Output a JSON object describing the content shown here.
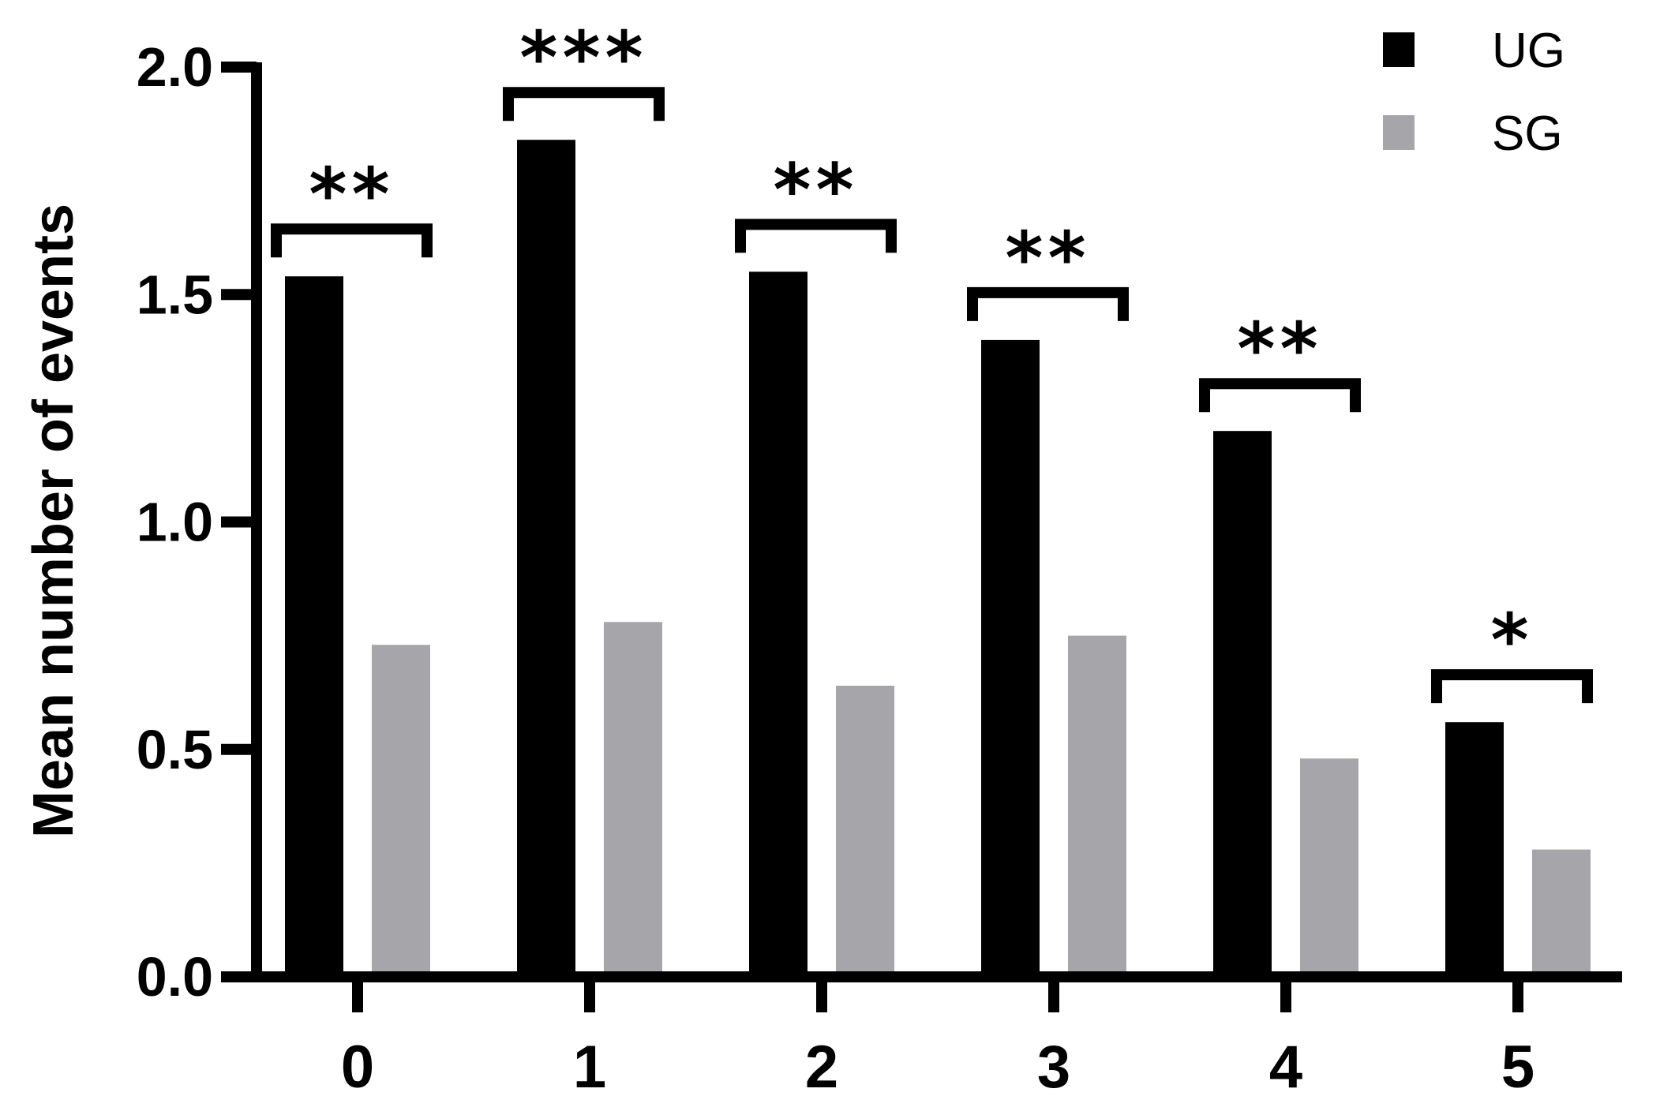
{
  "chart_data": {
    "type": "bar",
    "title": "",
    "xlabel": "",
    "ylabel": "Mean number of events",
    "categories": [
      "0",
      "1",
      "2",
      "3",
      "4",
      "5"
    ],
    "series": [
      {
        "name": "UG",
        "color": "#000000",
        "values": [
          1.54,
          1.84,
          1.55,
          1.4,
          1.2,
          0.56
        ]
      },
      {
        "name": "SG",
        "color": "#a6a6aa",
        "values": [
          0.73,
          0.78,
          0.64,
          0.75,
          0.48,
          0.28
        ]
      }
    ],
    "significance": [
      "**",
      "***",
      "**",
      "**",
      "**",
      "*"
    ],
    "ylim": [
      0,
      2.0
    ],
    "yticks": [
      "0.0",
      "0.5",
      "1.0",
      "1.5",
      "2.0"
    ],
    "grid": false,
    "legend_position": "top-right"
  }
}
